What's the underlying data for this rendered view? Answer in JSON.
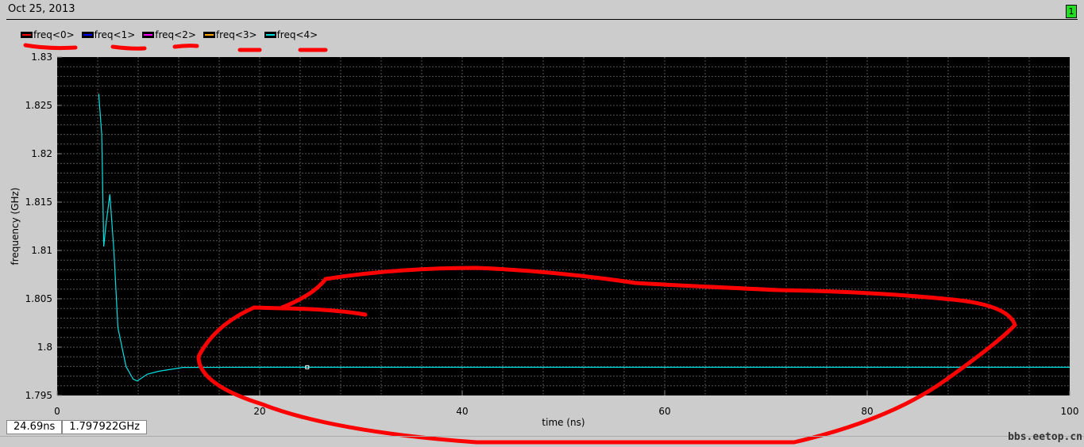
{
  "header": {
    "date": "Oct 25, 2013",
    "page_indicator": "1"
  },
  "cursor_readout": {
    "x": "24.69ns",
    "y": "1.797922GHz"
  },
  "watermark": "bbs.eetop.cn",
  "chart_data": {
    "type": "line",
    "xlabel": "time (ns)",
    "ylabel": "frequency (GHz)",
    "xlim": [
      0,
      100
    ],
    "ylim": [
      1.795,
      1.83
    ],
    "xticks": [
      "0",
      "20",
      "40",
      "60",
      "80",
      "100"
    ],
    "yticks": [
      "1.795",
      "1.8",
      "1.805",
      "1.81",
      "1.815",
      "1.82",
      "1.825",
      "1.83"
    ],
    "grid": true,
    "background": "#000000",
    "legend_placement": "top-left",
    "series": [
      {
        "name": "freq<0>",
        "color": "#ff0000"
      },
      {
        "name": "freq<1>",
        "color": "#0000ff"
      },
      {
        "name": "freq<2>",
        "color": "#ff00ff"
      },
      {
        "name": "freq<3>",
        "color": "#ffa500"
      },
      {
        "name": "freq<4>",
        "color": "#00e0e0",
        "x": [
          4.1,
          4.4,
          4.6,
          4.8,
          5.2,
          5.6,
          6.0,
          6.3,
          6.8,
          7.5,
          7.9,
          8.9,
          10,
          12.4,
          20,
          40,
          60,
          80,
          100
        ],
        "y": [
          1.8262,
          1.822,
          1.8104,
          1.8125,
          1.8158,
          1.81,
          1.802,
          1.8005,
          1.798,
          1.7967,
          1.7965,
          1.7972,
          1.7975,
          1.7979,
          1.79792,
          1.79792,
          1.79792,
          1.79792,
          1.79792
        ]
      }
    ],
    "cursor_marker": {
      "x": 24.69,
      "y": 1.797922
    }
  }
}
